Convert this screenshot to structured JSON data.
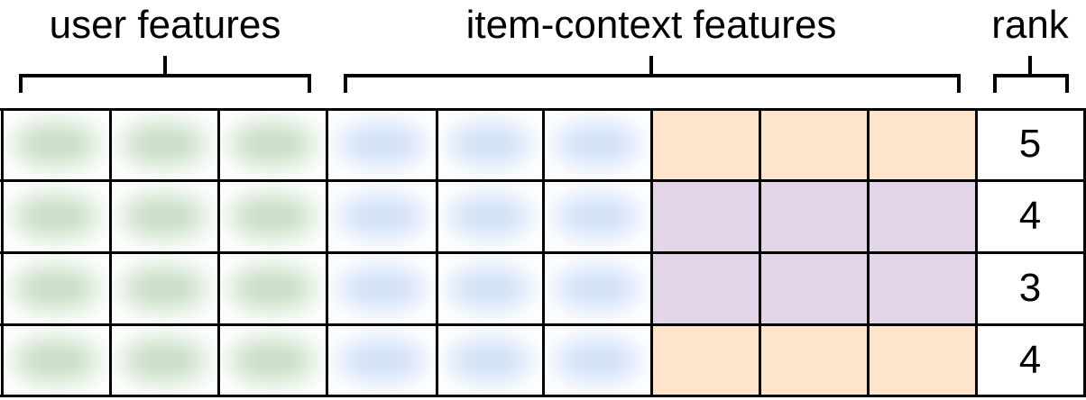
{
  "labels": {
    "user_features": "user features",
    "item_context_features": "item-context features",
    "rank": "rank"
  },
  "colors": {
    "user_feature": "#c5dcc2",
    "item_feature": "#cfdff6",
    "context_a": "#fde4cb",
    "context_b": "#e1d5e7"
  },
  "rows": [
    {
      "context": [
        "context_a",
        "context_a",
        "context_a"
      ],
      "rank": "5"
    },
    {
      "context": [
        "context_b",
        "context_b",
        "context_b"
      ],
      "rank": "4"
    },
    {
      "context": [
        "context_b",
        "context_b",
        "context_b"
      ],
      "rank": "3"
    },
    {
      "context": [
        "context_a",
        "context_a",
        "context_a"
      ],
      "rank": "4"
    }
  ]
}
